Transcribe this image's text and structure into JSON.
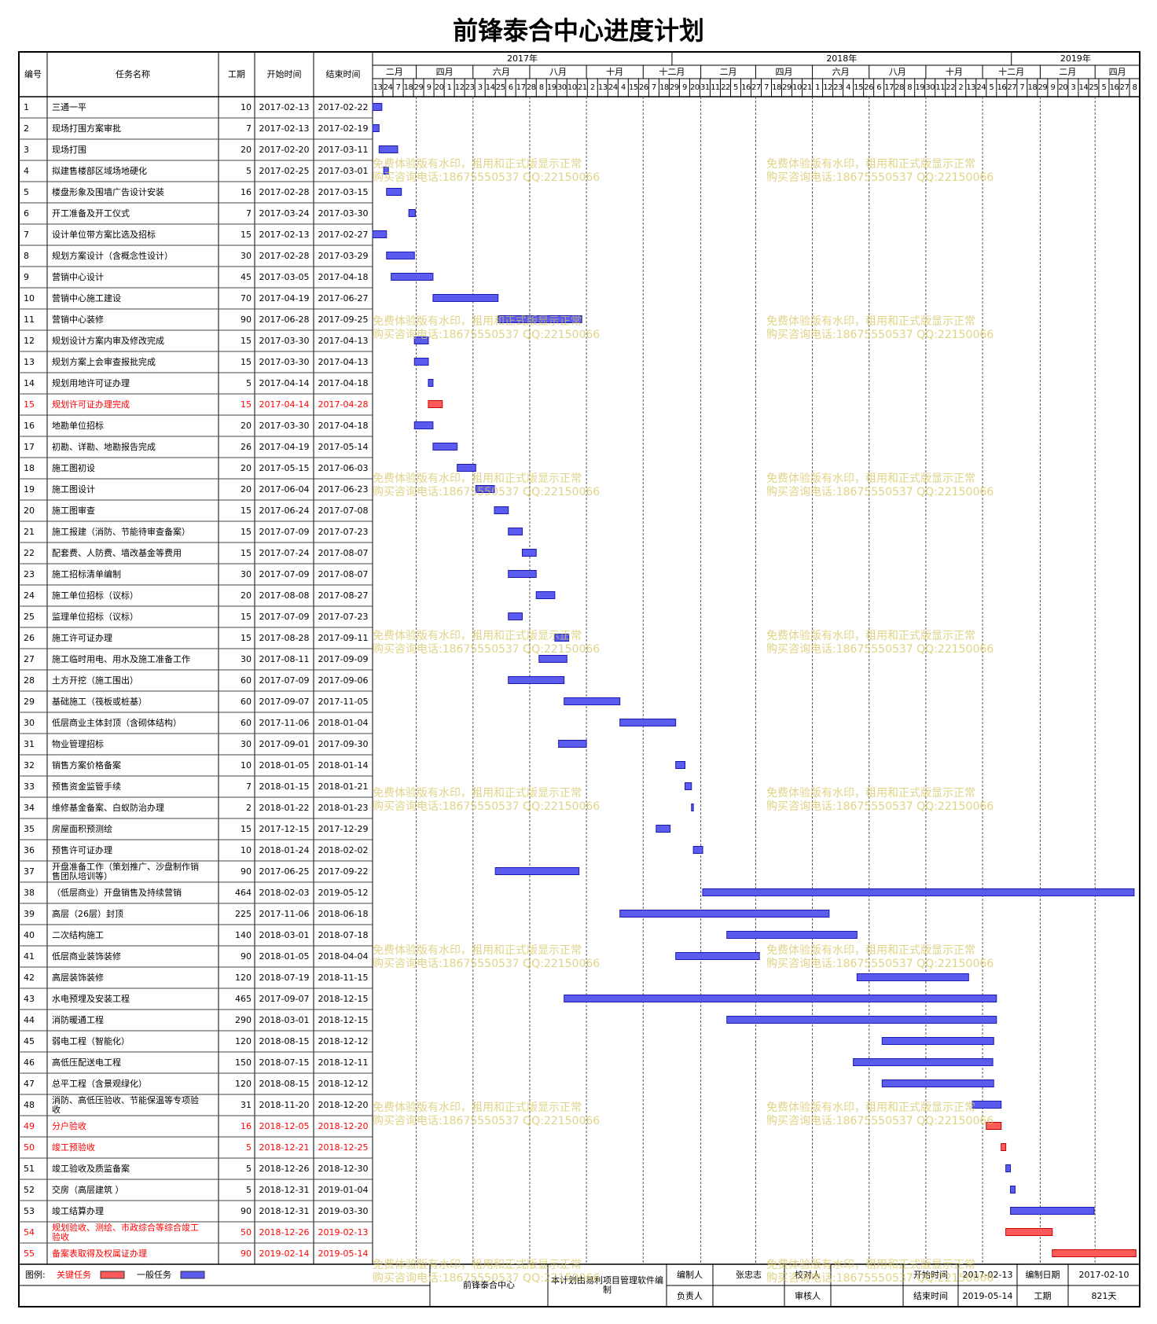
{
  "chart_data": {
    "type": "gantt",
    "title": "前锋泰合中心进度计划",
    "columns": [
      "编号",
      "任务名称",
      "工期",
      "开始时间",
      "结束时间"
    ],
    "timeline": {
      "years": [
        {
          "value": "2017",
          "label": "2017年"
        },
        {
          "value": "2018",
          "label": "2018年"
        },
        {
          "value": "2019",
          "label": "2019年"
        }
      ],
      "months": [
        {
          "value": "2017-02",
          "label": "二月"
        },
        {
          "value": "2017-04",
          "label": "四月"
        },
        {
          "value": "2017-06",
          "label": "六月"
        },
        {
          "value": "2017-08",
          "label": "八月"
        },
        {
          "value": "2017-10",
          "label": "十月"
        },
        {
          "value": "2017-12",
          "label": "十二月"
        },
        {
          "value": "2018-02",
          "label": "二月"
        },
        {
          "value": "2018-04",
          "label": "四月"
        },
        {
          "value": "2018-06",
          "label": "六月"
        },
        {
          "value": "2018-08",
          "label": "八月"
        },
        {
          "value": "2018-10",
          "label": "十月"
        },
        {
          "value": "2018-12",
          "label": "十二月"
        },
        {
          "value": "2019-02",
          "label": "二月"
        },
        {
          "value": "2019-04",
          "label": "四月"
        }
      ],
      "days": [
        {
          "value": "2017-02-13",
          "label": "13"
        },
        {
          "value": "2017-02-24",
          "label": "24"
        },
        {
          "value": "2017-03-07",
          "label": "7"
        },
        {
          "value": "2017-03-18",
          "label": "18"
        },
        {
          "value": "2017-03-29",
          "label": "29"
        },
        {
          "value": "2017-04-09",
          "label": "9"
        },
        {
          "value": "2017-04-20",
          "label": "20"
        },
        {
          "value": "2017-05-01",
          "label": "1"
        },
        {
          "value": "2017-05-12",
          "label": "12"
        },
        {
          "value": "2017-05-23",
          "label": "23"
        },
        {
          "value": "2017-06-03",
          "label": "3"
        },
        {
          "value": "2017-06-14",
          "label": "14"
        },
        {
          "value": "2017-06-25",
          "label": "25"
        },
        {
          "value": "2017-07-06",
          "label": "6"
        },
        {
          "value": "2017-07-17",
          "label": "17"
        },
        {
          "value": "2017-07-28",
          "label": "28"
        },
        {
          "value": "2017-08-08",
          "label": "8"
        },
        {
          "value": "2017-08-19",
          "label": "19"
        },
        {
          "value": "2017-08-30",
          "label": "30"
        },
        {
          "value": "2017-09-10",
          "label": "10"
        },
        {
          "value": "2017-09-21",
          "label": "21"
        },
        {
          "value": "2017-10-02",
          "label": "2"
        },
        {
          "value": "2017-10-13",
          "label": "13"
        },
        {
          "value": "2017-10-24",
          "label": "24"
        },
        {
          "value": "2017-11-04",
          "label": "4"
        },
        {
          "value": "2017-11-15",
          "label": "15"
        },
        {
          "value": "2017-11-26",
          "label": "26"
        },
        {
          "value": "2017-12-07",
          "label": "7"
        },
        {
          "value": "2017-12-18",
          "label": "18"
        },
        {
          "value": "2017-12-29",
          "label": "29"
        },
        {
          "value": "2018-01-09",
          "label": "9"
        },
        {
          "value": "2018-01-20",
          "label": "20"
        },
        {
          "value": "2018-01-31",
          "label": "31"
        },
        {
          "value": "2018-02-11",
          "label": "11"
        },
        {
          "value": "2018-02-22",
          "label": "22"
        },
        {
          "value": "2018-03-05",
          "label": "5"
        },
        {
          "value": "2018-03-16",
          "label": "16"
        },
        {
          "value": "2018-03-27",
          "label": "27"
        },
        {
          "value": "2018-04-07",
          "label": "7"
        },
        {
          "value": "2018-04-18",
          "label": "18"
        },
        {
          "value": "2018-04-29",
          "label": "29"
        },
        {
          "value": "2018-05-10",
          "label": "10"
        },
        {
          "value": "2018-05-21",
          "label": "21"
        },
        {
          "value": "2018-06-01",
          "label": "1"
        },
        {
          "value": "2018-06-12",
          "label": "12"
        },
        {
          "value": "2018-06-23",
          "label": "23"
        },
        {
          "value": "2018-07-04",
          "label": "4"
        },
        {
          "value": "2018-07-15",
          "label": "15"
        },
        {
          "value": "2018-07-26",
          "label": "26"
        },
        {
          "value": "2018-08-06",
          "label": "6"
        },
        {
          "value": "2018-08-17",
          "label": "17"
        },
        {
          "value": "2018-08-28",
          "label": "28"
        },
        {
          "value": "2018-09-08",
          "label": "8"
        },
        {
          "value": "2018-09-19",
          "label": "19"
        },
        {
          "value": "2018-09-30",
          "label": "30"
        },
        {
          "value": "2018-10-11",
          "label": "11"
        },
        {
          "value": "2018-10-22",
          "label": "22"
        },
        {
          "value": "2018-11-02",
          "label": "2"
        },
        {
          "value": "2018-11-13",
          "label": "13"
        },
        {
          "value": "2018-11-24",
          "label": "24"
        },
        {
          "value": "2018-12-05",
          "label": "5"
        },
        {
          "value": "2018-12-16",
          "label": "16"
        },
        {
          "value": "2018-12-27",
          "label": "27"
        },
        {
          "value": "2019-01-07",
          "label": "7"
        },
        {
          "value": "2019-01-18",
          "label": "18"
        },
        {
          "value": "2019-01-29",
          "label": "29"
        },
        {
          "value": "2019-02-09",
          "label": "9"
        },
        {
          "value": "2019-02-20",
          "label": "20"
        },
        {
          "value": "2019-03-03",
          "label": "3"
        },
        {
          "value": "2019-03-14",
          "label": "14"
        },
        {
          "value": "2019-03-25",
          "label": "25"
        },
        {
          "value": "2019-04-05",
          "label": "5"
        },
        {
          "value": "2019-04-16",
          "label": "16"
        },
        {
          "value": "2019-04-27",
          "label": "27"
        },
        {
          "value": "2019-05-08",
          "label": "8"
        }
      ]
    },
    "tasks": [
      {
        "id": 1,
        "name": "三通一平",
        "duration": 10,
        "start": "2017-02-13",
        "end": "2017-02-22"
      },
      {
        "id": 2,
        "name": "现场打围方案审批",
        "duration": 7,
        "start": "2017-02-13",
        "end": "2017-02-19"
      },
      {
        "id": 3,
        "name": "现场打围",
        "duration": 20,
        "start": "2017-02-20",
        "end": "2017-03-11"
      },
      {
        "id": 4,
        "name": "拟建售楼部区域场地硬化",
        "duration": 5,
        "start": "2017-02-25",
        "end": "2017-03-01"
      },
      {
        "id": 5,
        "name": "楼盘形象及围墙广告设计安装",
        "duration": 16,
        "start": "2017-02-28",
        "end": "2017-03-15"
      },
      {
        "id": 6,
        "name": "开工准备及开工仪式",
        "duration": 7,
        "start": "2017-03-24",
        "end": "2017-03-30"
      },
      {
        "id": 7,
        "name": "设计单位带方案比选及招标",
        "duration": 15,
        "start": "2017-02-13",
        "end": "2017-02-27"
      },
      {
        "id": 8,
        "name": "规划方案设计（含概念性设计）",
        "duration": 30,
        "start": "2017-02-28",
        "end": "2017-03-29"
      },
      {
        "id": 9,
        "name": "营销中心设计",
        "duration": 45,
        "start": "2017-03-05",
        "end": "2017-04-18"
      },
      {
        "id": 10,
        "name": "营销中心施工建设",
        "duration": 70,
        "start": "2017-04-19",
        "end": "2017-06-27"
      },
      {
        "id": 11,
        "name": "营销中心装修",
        "duration": 90,
        "start": "2017-06-28",
        "end": "2017-09-25"
      },
      {
        "id": 12,
        "name": "规划设计方案内审及修改完成",
        "duration": 15,
        "start": "2017-03-30",
        "end": "2017-04-13"
      },
      {
        "id": 13,
        "name": "规划方案上会审查报批完成",
        "duration": 15,
        "start": "2017-03-30",
        "end": "2017-04-13"
      },
      {
        "id": 14,
        "name": "规划用地许可证办理",
        "duration": 5,
        "start": "2017-04-14",
        "end": "2017-04-18"
      },
      {
        "id": 15,
        "name": "规划许可证办理完成",
        "duration": 15,
        "start": "2017-04-14",
        "end": "2017-04-28",
        "critical": true
      },
      {
        "id": 16,
        "name": "地勘单位招标",
        "duration": 20,
        "start": "2017-03-30",
        "end": "2017-04-18"
      },
      {
        "id": 17,
        "name": "初勘、详勘、地勘报告完成",
        "duration": 26,
        "start": "2017-04-19",
        "end": "2017-05-14"
      },
      {
        "id": 18,
        "name": "施工图初设",
        "duration": 20,
        "start": "2017-05-15",
        "end": "2017-06-03"
      },
      {
        "id": 19,
        "name": "施工图设计",
        "duration": 20,
        "start": "2017-06-04",
        "end": "2017-06-23"
      },
      {
        "id": 20,
        "name": "施工图审查",
        "duration": 15,
        "start": "2017-06-24",
        "end": "2017-07-08"
      },
      {
        "id": 21,
        "name": "施工报建（消防、节能待审查备案）",
        "duration": 15,
        "start": "2017-07-09",
        "end": "2017-07-23"
      },
      {
        "id": 22,
        "name": "配套费、人防费、墙改基金等费用",
        "duration": 15,
        "start": "2017-07-24",
        "end": "2017-08-07"
      },
      {
        "id": 23,
        "name": "施工招标清单编制",
        "duration": 30,
        "start": "2017-07-09",
        "end": "2017-08-07"
      },
      {
        "id": 24,
        "name": "施工单位招标（议标）",
        "duration": 20,
        "start": "2017-08-08",
        "end": "2017-08-27"
      },
      {
        "id": 25,
        "name": "监理单位招标（议标）",
        "duration": 15,
        "start": "2017-07-09",
        "end": "2017-07-23"
      },
      {
        "id": 26,
        "name": "施工许可证办理",
        "duration": 15,
        "start": "2017-08-28",
        "end": "2017-09-11"
      },
      {
        "id": 27,
        "name": "施工临时用电、用水及施工准备工作",
        "duration": 30,
        "start": "2017-08-11",
        "end": "2017-09-09"
      },
      {
        "id": 28,
        "name": "土方开挖（施工围出）",
        "duration": 60,
        "start": "2017-07-09",
        "end": "2017-09-06"
      },
      {
        "id": 29,
        "name": "基础施工（筏板或桩基）",
        "duration": 60,
        "start": "2017-09-07",
        "end": "2017-11-05"
      },
      {
        "id": 30,
        "name": "低层商业主体封顶（含砌体结构）",
        "duration": 60,
        "start": "2017-11-06",
        "end": "2018-01-04"
      },
      {
        "id": 31,
        "name": "物业管理招标",
        "duration": 30,
        "start": "2017-09-01",
        "end": "2017-09-30"
      },
      {
        "id": 32,
        "name": "销售方案价格备案",
        "duration": 10,
        "start": "2018-01-05",
        "end": "2018-01-14"
      },
      {
        "id": 33,
        "name": "预售资金监管手续",
        "duration": 7,
        "start": "2018-01-15",
        "end": "2018-01-21"
      },
      {
        "id": 34,
        "name": "维修基金备案、白蚁防治办理",
        "duration": 2,
        "start": "2018-01-22",
        "end": "2018-01-23"
      },
      {
        "id": 35,
        "name": "房屋面积预测绘",
        "duration": 15,
        "start": "2017-12-15",
        "end": "2017-12-29"
      },
      {
        "id": 36,
        "name": "预售许可证办理",
        "duration": 10,
        "start": "2018-01-24",
        "end": "2018-02-02"
      },
      {
        "id": 37,
        "name": "开盘准备工作（策划推广、沙盘制作销售团队培训等）",
        "duration": 90,
        "start": "2017-06-25",
        "end": "2017-09-22"
      },
      {
        "id": 38,
        "name": "（低层商业）开盘销售及持续营销",
        "duration": 464,
        "start": "2018-02-03",
        "end": "2019-05-12"
      },
      {
        "id": 39,
        "name": "高层（26层）封顶",
        "duration": 225,
        "start": "2017-11-06",
        "end": "2018-06-18"
      },
      {
        "id": 40,
        "name": "二次结构施工",
        "duration": 140,
        "start": "2018-03-01",
        "end": "2018-07-18"
      },
      {
        "id": 41,
        "name": "低层商业装饰装修",
        "duration": 90,
        "start": "2018-01-05",
        "end": "2018-04-04"
      },
      {
        "id": 42,
        "name": "高层装饰装修",
        "duration": 120,
        "start": "2018-07-19",
        "end": "2018-11-15"
      },
      {
        "id": 43,
        "name": "水电预埋及安装工程",
        "duration": 465,
        "start": "2017-09-07",
        "end": "2018-12-15"
      },
      {
        "id": 44,
        "name": "消防暖通工程",
        "duration": 290,
        "start": "2018-03-01",
        "end": "2018-12-15"
      },
      {
        "id": 45,
        "name": "弱电工程（智能化）",
        "duration": 120,
        "start": "2018-08-15",
        "end": "2018-12-12"
      },
      {
        "id": 46,
        "name": "高低压配送电工程",
        "duration": 150,
        "start": "2018-07-15",
        "end": "2018-12-11"
      },
      {
        "id": 47,
        "name": "总平工程（含景观绿化）",
        "duration": 120,
        "start": "2018-08-15",
        "end": "2018-12-12"
      },
      {
        "id": 48,
        "name": "消防、高低压验收、节能保温等专项验收",
        "duration": 31,
        "start": "2018-11-20",
        "end": "2018-12-20"
      },
      {
        "id": 49,
        "name": "分户验收",
        "duration": 16,
        "start": "2018-12-05",
        "end": "2018-12-20",
        "critical": true
      },
      {
        "id": 50,
        "name": "竣工预验收",
        "duration": 5,
        "start": "2018-12-21",
        "end": "2018-12-25",
        "critical": true
      },
      {
        "id": 51,
        "name": "竣工验收及质监备案",
        "duration": 5,
        "start": "2018-12-26",
        "end": "2018-12-30"
      },
      {
        "id": 52,
        "name": "交房（高层建筑 ）",
        "duration": 5,
        "start": "2018-12-31",
        "end": "2019-01-04"
      },
      {
        "id": 53,
        "name": "竣工结算办理",
        "duration": 90,
        "start": "2018-12-31",
        "end": "2019-03-30"
      },
      {
        "id": 54,
        "name": "规划验收、测绘、市政综合等综合竣工验收",
        "duration": 50,
        "start": "2018-12-26",
        "end": "2019-02-13",
        "critical": true
      },
      {
        "id": 55,
        "name": "备案表取得及权属证办理",
        "duration": 90,
        "start": "2019-02-14",
        "end": "2019-05-14",
        "critical": true
      }
    ],
    "legend": {
      "label": "图例:",
      "items": [
        {
          "name": "关键任务",
          "color": "#ff5a5a",
          "text_color": "#ff0000"
        },
        {
          "name": "一般任务",
          "color": "#5b5bef",
          "text_color": "#000000"
        }
      ]
    },
    "footer": {
      "project": "前锋泰合中心",
      "note": "本计划由易利项目管理软件编制",
      "rows": [
        [
          {
            "label": "编制人",
            "value": "张忠志"
          },
          {
            "label": "校对人"
          },
          {
            "label": "开始时间",
            "value": "2017-02-13"
          },
          {
            "label": "编制日期",
            "value": "2017-02-10"
          }
        ],
        [
          {
            "label": "负责人"
          },
          {
            "label": "审核人"
          },
          {
            "label": "结束时间",
            "value": "2019-05-14"
          },
          {
            "label": "工期",
            "value": "821天"
          }
        ]
      ]
    },
    "watermark": [
      "免费体验版有水印，租用和正式版显示正常",
      "购买咨询电话:18675550537 QQ:22150066"
    ]
  }
}
